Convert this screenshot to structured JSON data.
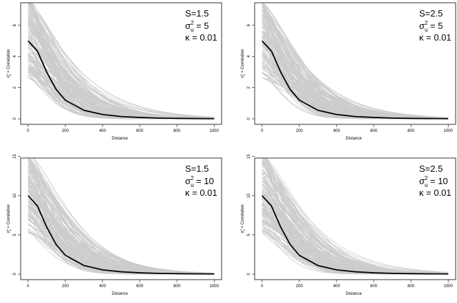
{
  "figure": {
    "panels": [
      {
        "S": "1.5",
        "sigma_value": "5",
        "kappa": "0.01"
      },
      {
        "S": "2.5",
        "sigma_value": "5",
        "kappa": "0.01"
      },
      {
        "S": "1.5",
        "sigma_value": "10",
        "kappa": "0.01"
      },
      {
        "S": "2.5",
        "sigma_value": "10",
        "kappa": "0.01"
      }
    ]
  },
  "labels": {
    "s_prefix": "S=",
    "sigma_symbol": "σ",
    "sigma_sup": "2",
    "sigma_sub": "u",
    "kappa_symbol": "κ",
    "equals": " = ",
    "xlabel": "Distance",
    "ylabel_sigma": "σ",
    "ylabel_sup": "2",
    "ylabel_sub": "u",
    "ylabel_rest": " × Correlation"
  },
  "chart_data": [
    {
      "type": "line",
      "xlabel": "Distance",
      "ylabel": "σ²u × Correlation",
      "xlim": [
        0,
        1000
      ],
      "ylim": [
        0,
        7.8
      ],
      "x_ticks": [
        0,
        200,
        400,
        600,
        800,
        1000
      ],
      "y_ticks": [
        0,
        2,
        4,
        6
      ],
      "series": [
        {
          "color": "#000000",
          "x": [
            0,
            50,
            100,
            150,
            200,
            300,
            400,
            500,
            600,
            700,
            800,
            900,
            1000
          ],
          "y": [
            5,
            4.35,
            3.0,
            1.9,
            1.2,
            0.55,
            0.28,
            0.15,
            0.09,
            0.05,
            0.03,
            0.02,
            0.01
          ]
        },
        {
          "color": "#cccccc",
          "count": 150,
          "y0_range": [
            2.6,
            7.8
          ],
          "description_text": ""
        }
      ],
      "annotation": {
        "S": "1.5",
        "sigma2u": "5",
        "kappa": "0.01"
      }
    },
    {
      "type": "line",
      "xlabel": "Distance",
      "ylabel": "σ²u × Correlation",
      "xlim": [
        0,
        1000
      ],
      "ylim": [
        0,
        7.8
      ],
      "x_ticks": [
        0,
        200,
        400,
        600,
        800,
        1000
      ],
      "y_ticks": [
        0,
        2,
        4,
        6
      ],
      "series": [
        {
          "color": "#000000",
          "x": [
            0,
            50,
            100,
            150,
            200,
            300,
            400,
            500,
            600,
            700,
            800,
            900,
            1000
          ],
          "y": [
            5,
            4.35,
            3.0,
            1.9,
            1.2,
            0.55,
            0.28,
            0.15,
            0.09,
            0.05,
            0.03,
            0.02,
            0.01
          ]
        },
        {
          "color": "#cccccc",
          "count": 150,
          "y0_range": [
            2.6,
            7.5
          ]
        }
      ],
      "annotation": {
        "S": "2.5",
        "sigma2u": "5",
        "kappa": "0.01"
      }
    },
    {
      "type": "line",
      "xlabel": "Distance",
      "ylabel": "σ²u × Correlation",
      "xlim": [
        0,
        1000
      ],
      "ylim": [
        0,
        15.5
      ],
      "x_ticks": [
        0,
        200,
        400,
        600,
        800,
        1000
      ],
      "y_ticks": [
        0,
        5,
        10,
        15
      ],
      "series": [
        {
          "color": "#000000",
          "x": [
            0,
            50,
            100,
            150,
            200,
            300,
            400,
            500,
            600,
            700,
            800,
            900,
            1000
          ],
          "y": [
            10,
            8.7,
            6.0,
            3.8,
            2.4,
            1.1,
            0.55,
            0.3,
            0.17,
            0.1,
            0.06,
            0.04,
            0.02
          ]
        },
        {
          "color": "#cccccc",
          "count": 150,
          "y0_range": [
            5.2,
            15.5
          ]
        }
      ],
      "annotation": {
        "S": "1.5",
        "sigma2u": "10",
        "kappa": "0.01"
      }
    },
    {
      "type": "line",
      "xlabel": "Distance",
      "ylabel": "σ²u × Correlation",
      "xlim": [
        0,
        1000
      ],
      "ylim": [
        0,
        15.5
      ],
      "x_ticks": [
        0,
        200,
        400,
        600,
        800,
        1000
      ],
      "y_ticks": [
        0,
        5,
        10,
        15
      ],
      "series": [
        {
          "color": "#000000",
          "x": [
            0,
            50,
            100,
            150,
            200,
            300,
            400,
            500,
            600,
            700,
            800,
            900,
            1000
          ],
          "y": [
            10,
            8.7,
            6.0,
            3.8,
            2.4,
            1.1,
            0.55,
            0.3,
            0.17,
            0.1,
            0.06,
            0.04,
            0.02
          ]
        },
        {
          "color": "#cccccc",
          "count": 150,
          "y0_range": [
            5.2,
            15.5
          ]
        }
      ],
      "annotation": {
        "S": "2.5",
        "sigma2u": "10",
        "kappa": "0.01"
      }
    }
  ]
}
